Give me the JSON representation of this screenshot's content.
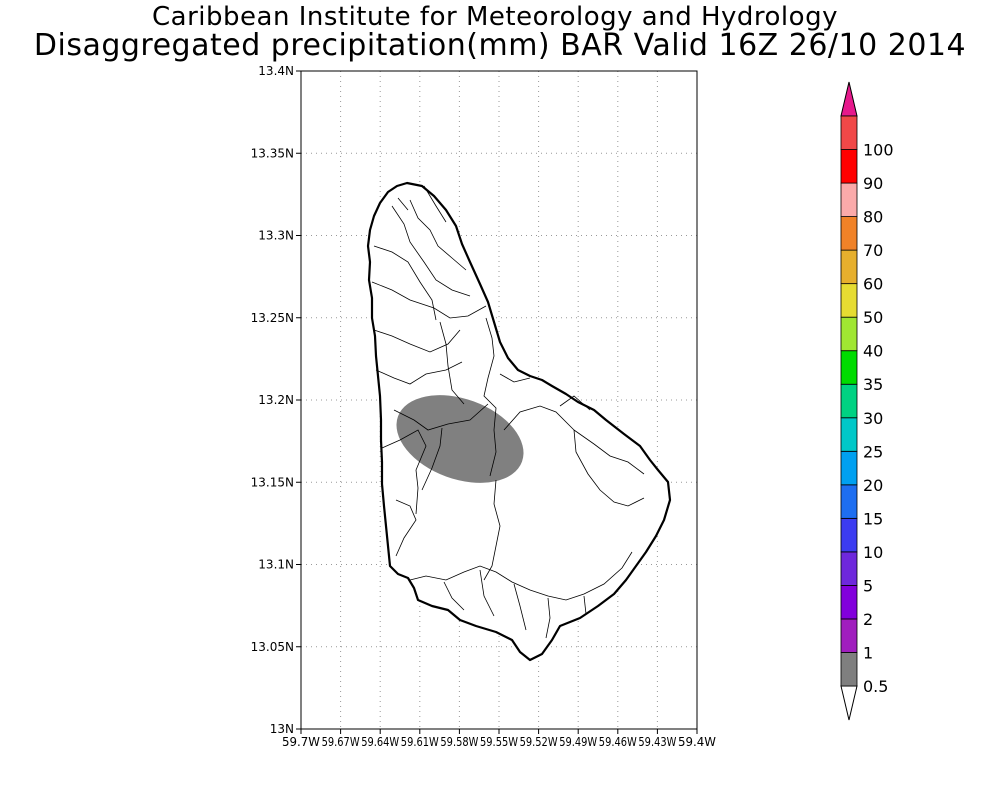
{
  "title": {
    "line1": "Caribbean Institute for Meteorology and Hydrology",
    "line2": "Disaggregated precipitation(mm) BAR Valid 16Z 26/10 2014"
  },
  "map": {
    "region": "Barbados",
    "lon_range": [
      -59.7,
      -59.4
    ],
    "lat_range": [
      13.0,
      13.4
    ],
    "y_ticks": [
      "13N",
      "13.05N",
      "13.1N",
      "13.15N",
      "13.2N",
      "13.25N",
      "13.3N",
      "13.35N",
      "13.4N"
    ],
    "x_ticks": [
      "59.7W",
      "59.67W",
      "59.64W",
      "59.61W",
      "59.58W",
      "59.55W",
      "59.52W",
      "59.49W",
      "59.46W",
      "59.43W",
      "59.4W"
    ],
    "precip_area": {
      "category": "0.5-1 mm",
      "center_lon": -59.575,
      "center_lat": 13.177,
      "color": "#808080"
    }
  },
  "colorbar": {
    "labels": [
      "0.5",
      "1",
      "2",
      "5",
      "10",
      "15",
      "20",
      "25",
      "30",
      "35",
      "40",
      "50",
      "60",
      "70",
      "80",
      "90",
      "100"
    ],
    "colors": [
      "#7f7f7f",
      "#a01ebe",
      "#8200dc",
      "#6e28dc",
      "#3c3cf0",
      "#1e6ef0",
      "#00a0f0",
      "#00c8c8",
      "#00d282",
      "#00dc00",
      "#a0e632",
      "#e6dc32",
      "#e6af2d",
      "#f08228",
      "#faaaaa",
      "#ff0000",
      "#f04848"
    ],
    "under_color": "#ffffff",
    "over_color": "#e6198c"
  }
}
